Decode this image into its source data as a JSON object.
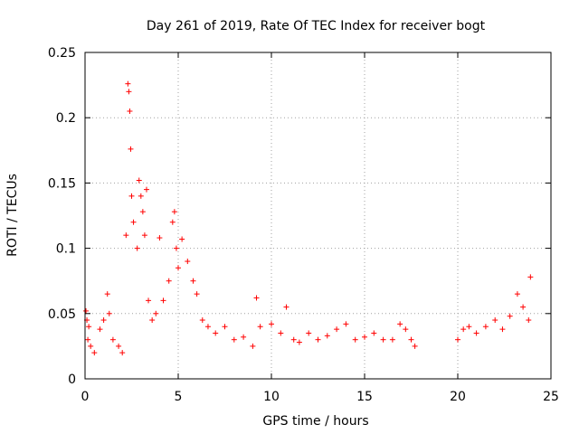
{
  "chart_data": {
    "type": "scatter",
    "title": "Day 261 of 2019, Rate Of TEC Index for receiver bogt",
    "xlabel": "GPS time / hours",
    "ylabel": "ROTI / TECUs",
    "xlim": [
      0,
      25
    ],
    "ylim": [
      0,
      0.25
    ],
    "x_ticks": [
      0,
      5,
      10,
      15,
      20,
      25
    ],
    "x_tick_labels": [
      "0",
      "5",
      "10",
      "15",
      "20",
      "25"
    ],
    "y_ticks": [
      0,
      0.05,
      0.1,
      0.15,
      0.2,
      0.25
    ],
    "y_tick_labels": [
      "0",
      "0.05",
      "0.1",
      "0.15",
      "0.2",
      "0.25"
    ],
    "grid": true,
    "marker": "+",
    "marker_color": "#ff0000",
    "series": [
      {
        "name": "ROTI",
        "x": [
          0.05,
          0.1,
          0.15,
          0.2,
          0.3,
          0.5,
          0.8,
          1.0,
          1.2,
          1.3,
          1.5,
          1.8,
          2.0,
          2.2,
          2.3,
          2.35,
          2.4,
          2.45,
          2.5,
          2.6,
          2.8,
          2.9,
          3.0,
          3.1,
          3.2,
          3.3,
          3.4,
          3.6,
          3.8,
          4.0,
          4.2,
          4.5,
          4.7,
          4.8,
          4.9,
          5.0,
          5.2,
          5.5,
          5.8,
          6.0,
          6.3,
          6.6,
          7.0,
          7.5,
          8.0,
          8.5,
          9.0,
          9.2,
          9.4,
          10.0,
          10.5,
          10.8,
          11.2,
          11.5,
          12.0,
          12.5,
          13.0,
          13.5,
          14.0,
          14.5,
          15.0,
          15.5,
          16.0,
          16.5,
          16.9,
          17.2,
          17.5,
          17.7,
          20.0,
          20.3,
          20.6,
          21.0,
          21.5,
          22.0,
          22.4,
          22.8,
          23.2,
          23.5,
          23.8,
          23.9
        ],
        "y": [
          0.052,
          0.045,
          0.03,
          0.04,
          0.025,
          0.02,
          0.038,
          0.045,
          0.065,
          0.05,
          0.03,
          0.025,
          0.02,
          0.11,
          0.226,
          0.22,
          0.205,
          0.176,
          0.14,
          0.12,
          0.1,
          0.152,
          0.14,
          0.128,
          0.11,
          0.145,
          0.06,
          0.045,
          0.05,
          0.108,
          0.06,
          0.075,
          0.12,
          0.128,
          0.1,
          0.085,
          0.107,
          0.09,
          0.075,
          0.065,
          0.045,
          0.04,
          0.035,
          0.04,
          0.03,
          0.032,
          0.025,
          0.062,
          0.04,
          0.042,
          0.035,
          0.055,
          0.03,
          0.028,
          0.035,
          0.03,
          0.033,
          0.038,
          0.042,
          0.03,
          0.032,
          0.035,
          0.03,
          0.03,
          0.042,
          0.038,
          0.03,
          0.025,
          0.03,
          0.038,
          0.04,
          0.035,
          0.04,
          0.045,
          0.038,
          0.048,
          0.065,
          0.055,
          0.045,
          0.078
        ]
      }
    ]
  }
}
